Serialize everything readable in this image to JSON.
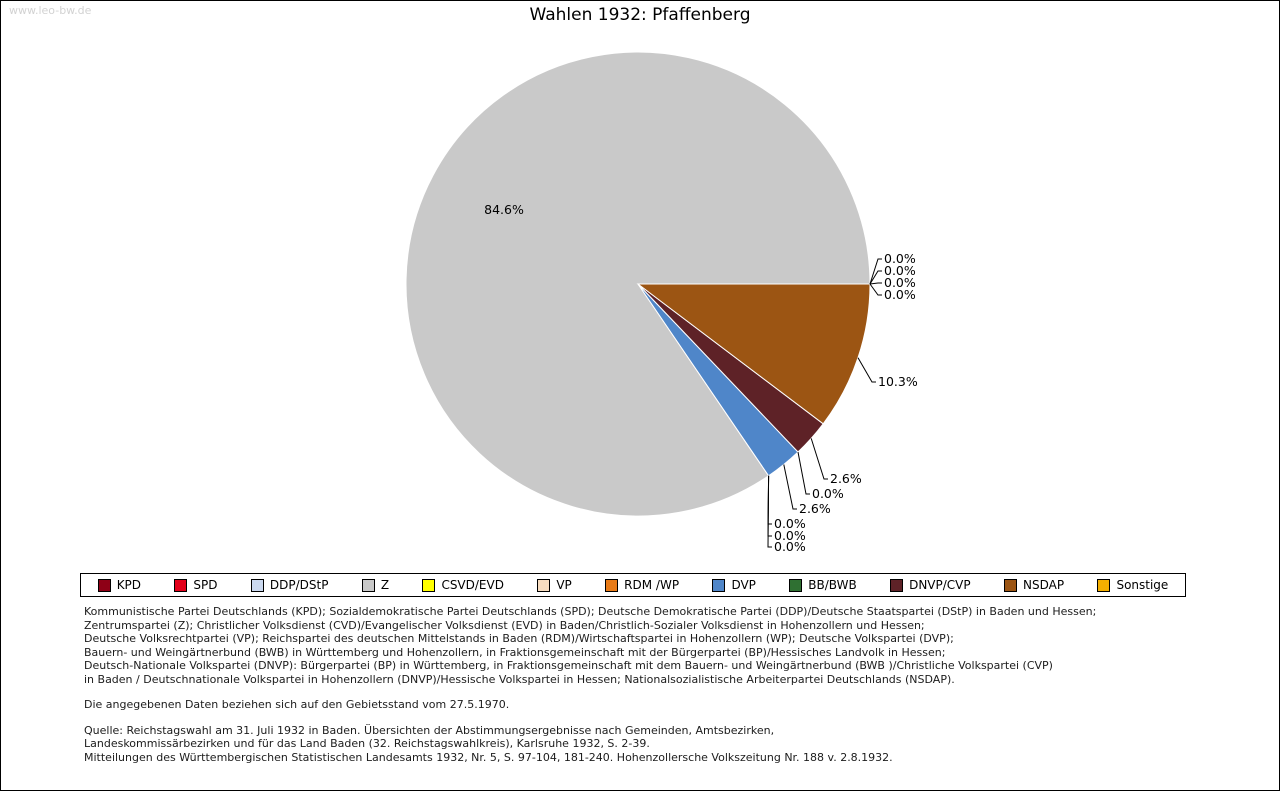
{
  "watermark": "www.leo-bw.de",
  "title": "Wahlen 1932: Pfaffenberg",
  "chart_data": {
    "type": "pie",
    "title": "Wahlen 1932: Pfaffenberg",
    "start_angle_deg": 0,
    "direction": "counterclockwise",
    "legend_position": "bottom",
    "value_unit": "%",
    "slices": [
      {
        "label": "KPD",
        "value": 0.0,
        "color": "#8e0016"
      },
      {
        "label": "SPD",
        "value": 0.0,
        "color": "#e2001a"
      },
      {
        "label": "DDP/DStP",
        "value": 0.0,
        "color": "#cbd9f0"
      },
      {
        "label": "Z",
        "value": 84.6,
        "color": "#c9c9c9"
      },
      {
        "label": "CSVD/EVD",
        "value": 0.0,
        "color": "#ffff00"
      },
      {
        "label": "VP",
        "value": 0.0,
        "color": "#f8ddc0"
      },
      {
        "label": "RDM /WP",
        "value": 0.0,
        "color": "#e97b17"
      },
      {
        "label": "DVP",
        "value": 2.6,
        "color": "#4f86c9"
      },
      {
        "label": "BB/BWB",
        "value": 0.0,
        "color": "#2f7032"
      },
      {
        "label": "DNVP/CVP",
        "value": 2.6,
        "color": "#5e2227"
      },
      {
        "label": "NSDAP",
        "value": 10.3,
        "color": "#9c5513"
      },
      {
        "label": "Sonstige",
        "value": 0.0,
        "color": "#f4af00"
      }
    ]
  },
  "notes": {
    "party_lines": [
      "Kommunistische Partei Deutschlands (KPD); Sozialdemokratische Partei Deutschlands (SPD); Deutsche Demokratische Partei (DDP)/Deutsche Staatspartei (DStP) in Baden und Hessen;",
      "Zentrumspartei (Z); Christlicher Volksdienst (CVD)/Evangelischer Volksdienst (EVD) in Baden/Christlich-Sozialer Volksdienst in Hohenzollern und Hessen;",
      "Deutsche Volksrechtpartei (VP); Reichspartei des deutschen Mittelstands in Baden (RDM)/Wirtschaftspartei in Hohenzollern (WP); Deutsche Volkspartei (DVP);",
      "Bauern- und Weingärtnerbund (BWB) in Württemberg und Hohenzollern, in Fraktionsgemeinschaft mit der Bürgerpartei (BP)/Hessisches Landvolk in Hessen;",
      "Deutsch-Nationale Volkspartei (DNVP): Bürgerpartei (BP) in Württemberg, in Fraktionsgemeinschaft mit dem Bauern- und Weingärtnerbund (BWB )/Christliche Volkspartei (CVP)",
      "in Baden / Deutschnationale Volkspartei in Hohenzollern (DNVP)/Hessische Volkspartei in Hessen; Nationalsozialistische Arbeiterpartei Deutschlands (NSDAP)."
    ],
    "gebietsstand": "Die angegebenen Daten beziehen sich auf den Gebietsstand vom 27.5.1970.",
    "quelle_lines": [
      "Quelle: Reichstagswahl am 31. Juli 1932 in Baden. Übersichten der Abstimmungsergebnisse nach Gemeinden, Amtsbezirken,",
      "Landeskommissärbezirken und für das Land Baden (32. Reichstagswahlkreis), Karlsruhe 1932, S. 2-39.",
      "Mitteilungen des Württembergischen Statistischen Landesamts 1932, Nr. 5, S. 97-104, 181-240. Hohenzollersche Volkszeitung Nr. 188 v. 2.8.1932."
    ]
  }
}
